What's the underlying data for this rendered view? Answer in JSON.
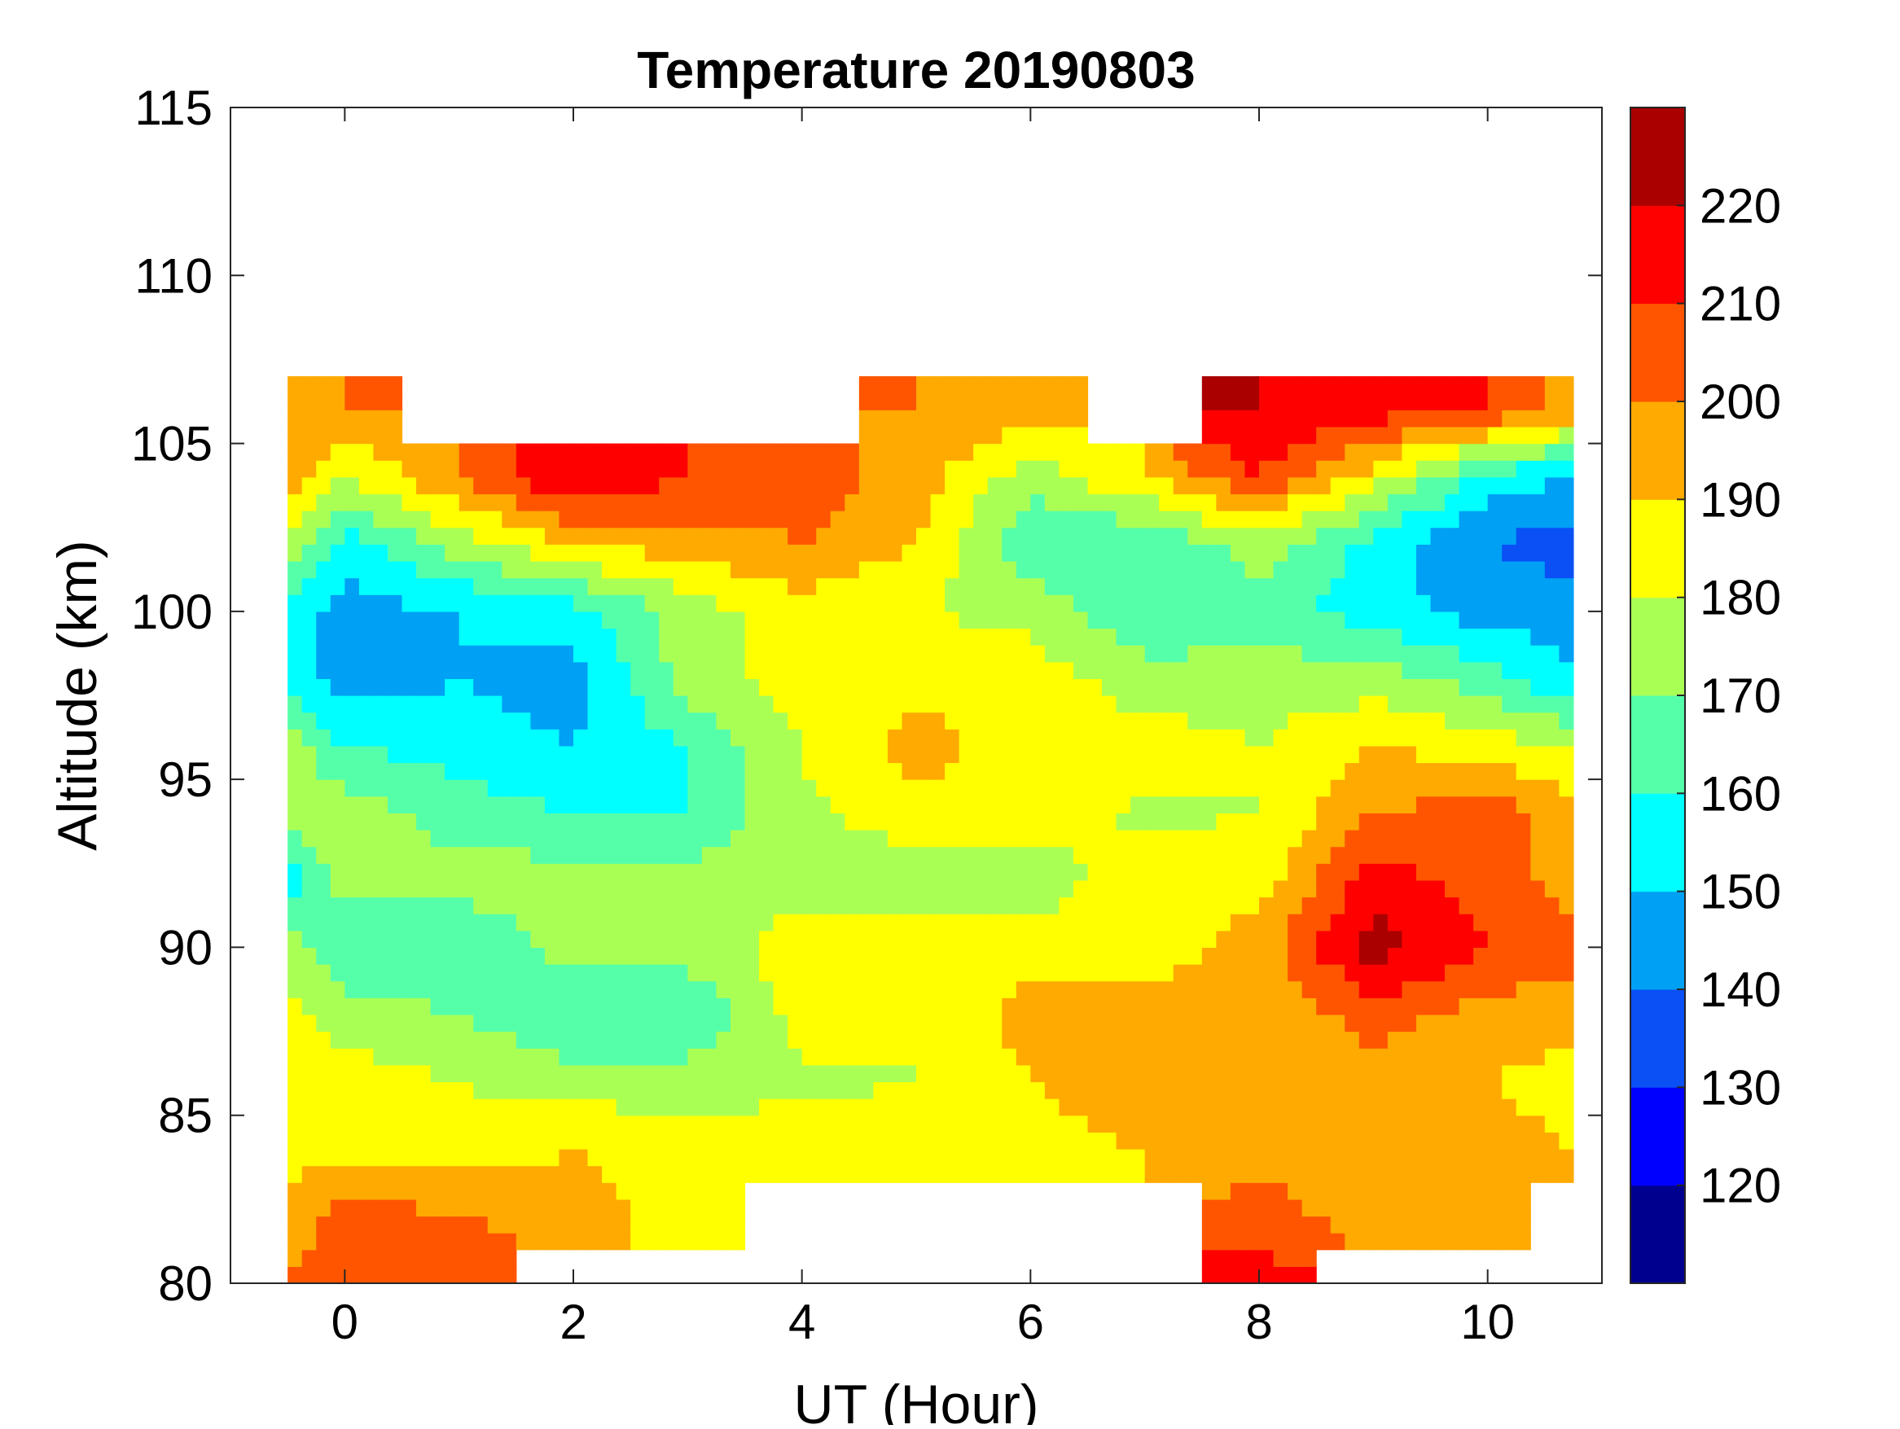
{
  "chart_data": {
    "type": "heatmap",
    "title": "Temperature 20190803",
    "xlabel": "UT (Hour)",
    "ylabel": "Altitude (km)",
    "xlim": [
      -1,
      11
    ],
    "ylim": [
      80,
      115
    ],
    "xticks": [
      0,
      2,
      4,
      6,
      8,
      10
    ],
    "yticks": [
      80,
      85,
      90,
      95,
      100,
      105,
      110,
      115
    ],
    "colorbar": {
      "range": [
        110,
        230
      ],
      "ticks": [
        120,
        130,
        140,
        150,
        160,
        170,
        180,
        190,
        200,
        210,
        220
      ],
      "levels": [
        110,
        120,
        130,
        140,
        150,
        160,
        170,
        180,
        190,
        200,
        210,
        220,
        230
      ],
      "colors": [
        "#00008f",
        "#0000ff",
        "#0a50f5",
        "#00a0f5",
        "#00ffff",
        "#55ffaa",
        "#aaff55",
        "#ffff00",
        "#ffaa00",
        "#ff5500",
        "#ff0000",
        "#aa0000"
      ]
    },
    "x": [
      -0.5,
      0,
      1,
      2,
      3,
      4,
      5,
      6,
      7,
      8,
      9,
      10,
      10.75
    ],
    "y": [
      80,
      82,
      84,
      86,
      88,
      90,
      92,
      94,
      96,
      98,
      100,
      102,
      104,
      106,
      108
    ],
    "z": [
      [
        200,
        205,
        210,
        null,
        null,
        null,
        null,
        null,
        null,
        215,
        null,
        null,
        null
      ],
      [
        195,
        205,
        200,
        195,
        185,
        null,
        null,
        null,
        null,
        205,
        195,
        195,
        null
      ],
      [
        185,
        185,
        185,
        190,
        185,
        185,
        185,
        185,
        190,
        195,
        195,
        195,
        190
      ],
      [
        185,
        185,
        180,
        175,
        175,
        178,
        180,
        190,
        200,
        200,
        195,
        190,
        185
      ],
      [
        185,
        175,
        170,
        160,
        160,
        185,
        180,
        195,
        195,
        190,
        205,
        195,
        195
      ],
      [
        175,
        160,
        160,
        175,
        175,
        185,
        185,
        185,
        185,
        195,
        225,
        210,
        205
      ],
      [
        155,
        175,
        175,
        175,
        175,
        175,
        175,
        175,
        185,
        185,
        215,
        205,
        195
      ],
      [
        175,
        175,
        165,
        160,
        160,
        178,
        185,
        185,
        178,
        180,
        200,
        205,
        195
      ],
      [
        175,
        160,
        155,
        150,
        160,
        180,
        195,
        185,
        185,
        180,
        190,
        185,
        178
      ],
      [
        155,
        145,
        150,
        145,
        175,
        185,
        185,
        185,
        175,
        175,
        175,
        165,
        150
      ],
      [
        155,
        145,
        150,
        155,
        175,
        185,
        180,
        178,
        160,
        165,
        155,
        145,
        145
      ],
      [
        175,
        155,
        175,
        190,
        195,
        200,
        190,
        160,
        160,
        175,
        155,
        140,
        135
      ],
      [
        195,
        180,
        200,
        220,
        210,
        205,
        195,
        175,
        190,
        210,
        185,
        155,
        150
      ],
      [
        195,
        200,
        null,
        null,
        null,
        null,
        200,
        195,
        null,
        220,
        215,
        210,
        195
      ],
      [
        null,
        null,
        null,
        null,
        null,
        null,
        null,
        null,
        null,
        null,
        null,
        null,
        null
      ]
    ]
  }
}
